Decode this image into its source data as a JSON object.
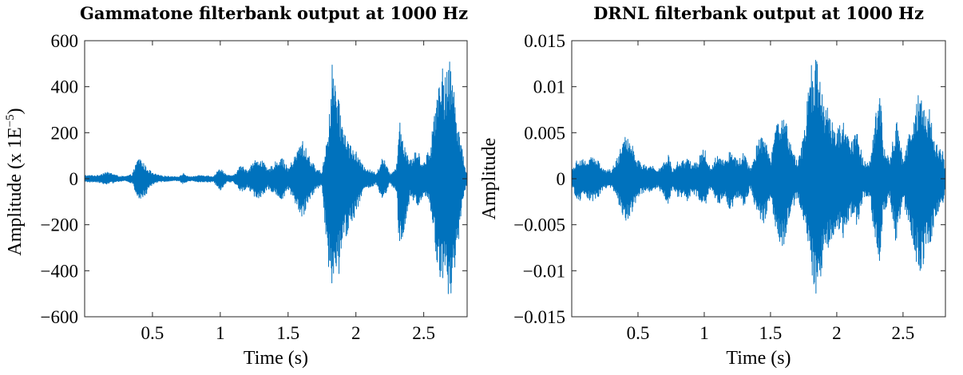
{
  "chart_data": [
    {
      "type": "line",
      "title": "Gammatone filterbank output at 1000 Hz",
      "xlabel": "Time (s)",
      "ylabel": "Amplitude (x 1E",
      "ylabel_exponent": "−5",
      "ylabel_close": ")",
      "xlim": [
        0.0,
        2.82
      ],
      "ylim": [
        -600,
        600
      ],
      "xticks": [
        0.5,
        1,
        1.5,
        2,
        2.5
      ],
      "xtick_labels": [
        "0.5",
        "1",
        "1.5",
        "2",
        "2.5"
      ],
      "yticks": [
        600,
        400,
        200,
        0,
        -200,
        -400,
        -600
      ],
      "ytick_labels": [
        "600",
        "400",
        "200",
        "0",
        "−200",
        "−400",
        "−600"
      ],
      "grid": false,
      "color": "#0072BD",
      "series": [
        {
          "envelope": {
            "time_s": [
              0.0,
              0.05,
              0.1,
              0.15,
              0.2,
              0.25,
              0.3,
              0.35,
              0.4,
              0.45,
              0.5,
              0.55,
              0.6,
              0.65,
              0.7,
              0.73,
              0.76,
              0.8,
              0.85,
              0.9,
              0.95,
              1.0,
              1.05,
              1.1,
              1.15,
              1.2,
              1.25,
              1.3,
              1.35,
              1.4,
              1.45,
              1.5,
              1.55,
              1.6,
              1.65,
              1.7,
              1.75,
              1.8,
              1.83,
              1.85,
              1.87,
              1.9,
              1.95,
              2.0,
              2.05,
              2.1,
              2.15,
              2.2,
              2.25,
              2.3,
              2.32,
              2.35,
              2.4,
              2.45,
              2.5,
              2.55,
              2.6,
              2.62,
              2.65,
              2.7,
              2.75,
              2.8,
              2.82
            ],
            "upper": [
              15,
              15,
              15,
              30,
              25,
              12,
              10,
              20,
              100,
              55,
              25,
              15,
              12,
              10,
              10,
              25,
              10,
              10,
              15,
              15,
              10,
              50,
              15,
              15,
              60,
              40,
              80,
              90,
              40,
              70,
              100,
              45,
              100,
              175,
              110,
              50,
              30,
              250,
              550,
              420,
              350,
              250,
              160,
              120,
              60,
              40,
              25,
              100,
              20,
              60,
              270,
              180,
              80,
              130,
              70,
              150,
              420,
              530,
              460,
              520,
              280,
              60,
              30
            ],
            "lower": [
              -15,
              -15,
              -15,
              -25,
              -20,
              -12,
              -10,
              -20,
              -100,
              -75,
              -25,
              -15,
              -12,
              -10,
              -10,
              -25,
              -10,
              -10,
              -15,
              -15,
              -15,
              -50,
              -15,
              -15,
              -60,
              -40,
              -80,
              -90,
              -40,
              -70,
              -100,
              -45,
              -110,
              -180,
              -110,
              -50,
              -30,
              -420,
              -540,
              -500,
              -440,
              -310,
              -230,
              -150,
              -60,
              -40,
              -25,
              -110,
              -20,
              -60,
              -330,
              -280,
              -80,
              -130,
              -70,
              -130,
              -410,
              -500,
              -480,
              -520,
              -300,
              -60,
              -30
            ]
          }
        }
      ]
    },
    {
      "type": "line",
      "title": "DRNL filterbank output at 1000 Hz",
      "xlabel": "Time (s)",
      "ylabel": "Amplitude",
      "xlim": [
        0.0,
        2.82
      ],
      "ylim": [
        -0.015,
        0.015
      ],
      "xticks": [
        0.5,
        1,
        1.5,
        2,
        2.5
      ],
      "xtick_labels": [
        "0.5",
        "1",
        "1.5",
        "2",
        "2.5"
      ],
      "yticks": [
        0.015,
        0.01,
        0.005,
        0,
        -0.005,
        -0.01,
        -0.015
      ],
      "ytick_labels": [
        "0.015",
        "0.01",
        "0.005",
        "0",
        "−0.005",
        "−0.01",
        "−0.015"
      ],
      "grid": false,
      "color": "#0072BD",
      "series": [
        {
          "envelope": {
            "time_s": [
              0.0,
              0.05,
              0.1,
              0.15,
              0.2,
              0.25,
              0.3,
              0.35,
              0.4,
              0.45,
              0.5,
              0.55,
              0.6,
              0.65,
              0.7,
              0.73,
              0.76,
              0.8,
              0.85,
              0.88,
              0.9,
              0.95,
              1.0,
              1.05,
              1.1,
              1.15,
              1.2,
              1.25,
              1.3,
              1.35,
              1.4,
              1.45,
              1.5,
              1.55,
              1.6,
              1.65,
              1.7,
              1.75,
              1.8,
              1.83,
              1.85,
              1.87,
              1.9,
              1.95,
              2.0,
              2.05,
              2.1,
              2.15,
              2.2,
              2.25,
              2.3,
              2.33,
              2.35,
              2.4,
              2.45,
              2.5,
              2.55,
              2.6,
              2.62,
              2.65,
              2.7,
              2.75,
              2.8,
              2.82
            ],
            "upper": [
              0.001,
              0.0025,
              0.002,
              0.0025,
              0.002,
              0.001,
              0.001,
              0.0025,
              0.0055,
              0.004,
              0.002,
              0.0015,
              0.0015,
              0.001,
              0.002,
              0.0028,
              0.001,
              0.002,
              0.002,
              0.0028,
              0.0015,
              0.002,
              0.0035,
              0.001,
              0.003,
              0.002,
              0.0035,
              0.002,
              0.003,
              0.001,
              0.004,
              0.005,
              0.002,
              0.0065,
              0.0075,
              0.004,
              0.002,
              0.0045,
              0.012,
              0.0138,
              0.013,
              0.011,
              0.009,
              0.007,
              0.0055,
              0.0065,
              0.004,
              0.0055,
              0.002,
              0.002,
              0.0085,
              0.0095,
              0.004,
              0.002,
              0.007,
              0.002,
              0.0055,
              0.0085,
              0.01,
              0.009,
              0.0075,
              0.004,
              0.003,
              0.001
            ],
            "lower": [
              -0.001,
              -0.0025,
              -0.002,
              -0.0025,
              -0.002,
              -0.001,
              -0.001,
              -0.0025,
              -0.0055,
              -0.004,
              -0.002,
              -0.0015,
              -0.0015,
              -0.001,
              -0.002,
              -0.0028,
              -0.001,
              -0.002,
              -0.002,
              -0.0028,
              -0.0015,
              -0.002,
              -0.0035,
              -0.001,
              -0.003,
              -0.002,
              -0.0035,
              -0.002,
              -0.003,
              -0.001,
              -0.004,
              -0.005,
              -0.002,
              -0.0065,
              -0.0075,
              -0.004,
              -0.002,
              -0.0045,
              -0.01,
              -0.0125,
              -0.0128,
              -0.0115,
              -0.0095,
              -0.007,
              -0.0055,
              -0.0065,
              -0.004,
              -0.0055,
              -0.002,
              -0.002,
              -0.0085,
              -0.0095,
              -0.004,
              -0.002,
              -0.0075,
              -0.002,
              -0.0065,
              -0.009,
              -0.0105,
              -0.0095,
              -0.0075,
              -0.004,
              -0.003,
              -0.001
            ]
          }
        }
      ]
    }
  ]
}
